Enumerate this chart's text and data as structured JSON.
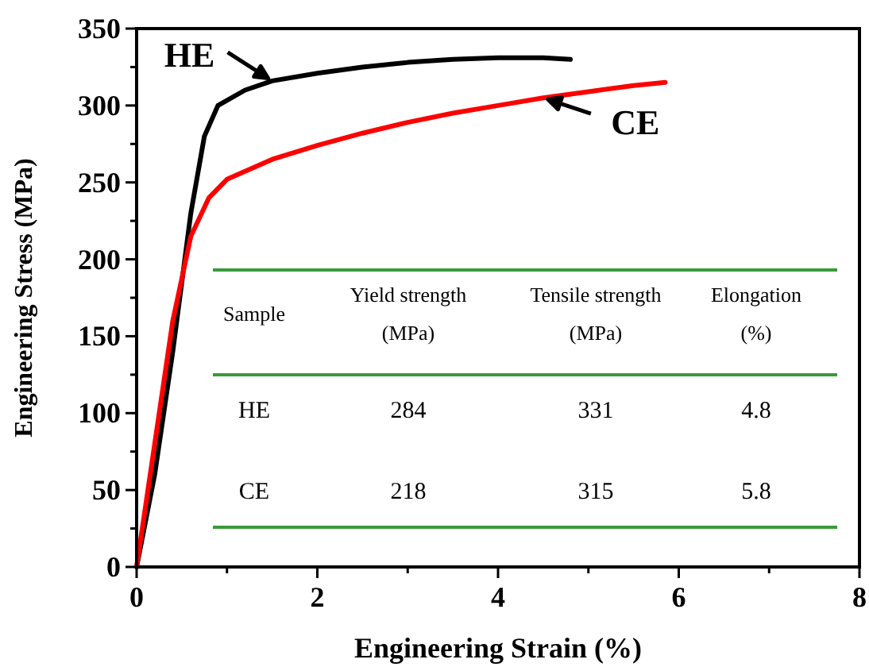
{
  "chart_data": {
    "type": "line",
    "xlabel": "Engineering Strain (%)",
    "ylabel": "Engineering Stress (MPa)",
    "xlim": [
      0,
      8
    ],
    "ylim": [
      0,
      350
    ],
    "xticks": [
      0,
      {
        "value": 1,
        "label": null
      },
      2,
      {
        "value": 3,
        "label": null
      },
      4,
      {
        "value": 5,
        "label": null
      },
      6,
      {
        "value": 7,
        "label": null
      },
      8
    ],
    "yticks": [
      0,
      {
        "value": 25,
        "label": null
      },
      50,
      {
        "value": 75,
        "label": null
      },
      100,
      {
        "value": 125,
        "label": null
      },
      150,
      {
        "value": 175,
        "label": null
      },
      200,
      {
        "value": 225,
        "label": null
      },
      250,
      {
        "value": 275,
        "label": null
      },
      300,
      {
        "value": 325,
        "label": null
      },
      350
    ],
    "marker": "none",
    "line_style": "solid",
    "series": [
      {
        "color": "#000000",
        "x": [
          0,
          0.2,
          0.4,
          0.6,
          0.75,
          0.9,
          1.2,
          1.5,
          2,
          2.5,
          3,
          3.5,
          4,
          4.5,
          4.8
        ],
        "values": [
          0,
          60,
          140,
          230,
          280,
          300,
          310,
          316,
          321,
          325,
          328,
          330,
          331,
          331,
          330
        ]
      },
      {
        "color": "#ff0000",
        "x": [
          0,
          0.2,
          0.4,
          0.6,
          0.8,
          1,
          1.5,
          2,
          2.5,
          3,
          3.5,
          4,
          4.5,
          5,
          5.5,
          5.85
        ],
        "values": [
          0,
          80,
          160,
          215,
          240,
          252,
          265,
          274,
          282,
          289,
          295,
          300,
          305,
          309,
          313,
          315
        ]
      }
    ],
    "annotations": [
      {
        "text": "HE",
        "x": 1.5,
        "y": 316
      },
      {
        "text": "CE",
        "x": 4.5,
        "y": 305
      },
      "Sample",
      "Yield strength (MPa)",
      "Tensile strength (MPa)",
      "Elongation (%)",
      "HE",
      "284",
      "331",
      "4.8",
      "CE",
      "218",
      "315",
      "5.8"
    ]
  }
}
